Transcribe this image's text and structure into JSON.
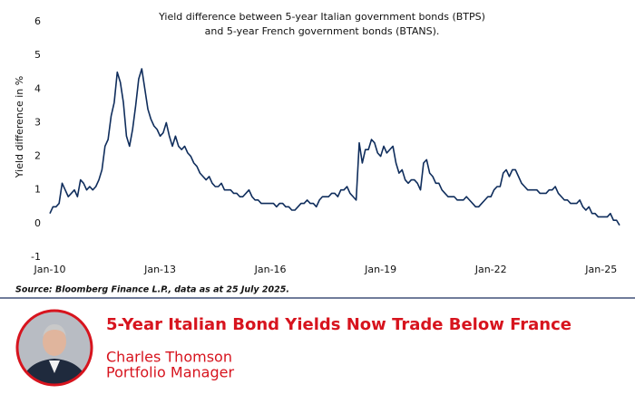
{
  "chart_data": {
    "type": "line",
    "title": [
      "Yield difference between 5-year Italian government bonds (BTPS)",
      "and 5-year French government bonds (BTANS)."
    ],
    "y_label": "Yield difference in %",
    "source": "Source: Bloomberg Finance L.P., data as at 25 July 2025.",
    "xlim": [
      "2010-01",
      "2025-07"
    ],
    "xticks": [
      {
        "value": "2010-01",
        "label": "Jan-10"
      },
      {
        "value": "2013-01",
        "label": "Jan-13"
      },
      {
        "value": "2016-01",
        "label": "Jan-16"
      },
      {
        "value": "2019-01",
        "label": "Jan-19"
      },
      {
        "value": "2022-01",
        "label": "Jan-22"
      },
      {
        "value": "2025-01",
        "label": "Jan-25"
      }
    ],
    "ylim": [
      -1,
      6
    ],
    "yticks": [
      -1,
      0,
      1,
      2,
      3,
      4,
      5,
      6
    ],
    "grid": false,
    "x": [
      "2010-01",
      "2010-02",
      "2010-03",
      "2010-04",
      "2010-05",
      "2010-06",
      "2010-07",
      "2010-08",
      "2010-09",
      "2010-10",
      "2010-11",
      "2010-12",
      "2011-01",
      "2011-02",
      "2011-03",
      "2011-04",
      "2011-05",
      "2011-06",
      "2011-07",
      "2011-08",
      "2011-09",
      "2011-10",
      "2011-11",
      "2011-12",
      "2012-01",
      "2012-02",
      "2012-03",
      "2012-04",
      "2012-05",
      "2012-06",
      "2012-07",
      "2012-08",
      "2012-09",
      "2012-10",
      "2012-11",
      "2012-12",
      "2013-01",
      "2013-02",
      "2013-03",
      "2013-04",
      "2013-05",
      "2013-06",
      "2013-07",
      "2013-08",
      "2013-09",
      "2013-10",
      "2013-11",
      "2013-12",
      "2014-01",
      "2014-02",
      "2014-03",
      "2014-04",
      "2014-05",
      "2014-06",
      "2014-07",
      "2014-08",
      "2014-09",
      "2014-10",
      "2014-11",
      "2014-12",
      "2015-01",
      "2015-02",
      "2015-03",
      "2015-04",
      "2015-05",
      "2015-06",
      "2015-07",
      "2015-08",
      "2015-09",
      "2015-10",
      "2015-11",
      "2015-12",
      "2016-01",
      "2016-02",
      "2016-03",
      "2016-04",
      "2016-05",
      "2016-06",
      "2016-07",
      "2016-08",
      "2016-09",
      "2016-10",
      "2016-11",
      "2016-12",
      "2017-01",
      "2017-02",
      "2017-03",
      "2017-04",
      "2017-05",
      "2017-06",
      "2017-07",
      "2017-08",
      "2017-09",
      "2017-10",
      "2017-11",
      "2017-12",
      "2018-01",
      "2018-02",
      "2018-03",
      "2018-04",
      "2018-05",
      "2018-06",
      "2018-07",
      "2018-08",
      "2018-09",
      "2018-10",
      "2018-11",
      "2018-12",
      "2019-01",
      "2019-02",
      "2019-03",
      "2019-04",
      "2019-05",
      "2019-06",
      "2019-07",
      "2019-08",
      "2019-09",
      "2019-10",
      "2019-11",
      "2019-12",
      "2020-01",
      "2020-02",
      "2020-03",
      "2020-04",
      "2020-05",
      "2020-06",
      "2020-07",
      "2020-08",
      "2020-09",
      "2020-10",
      "2020-11",
      "2020-12",
      "2021-01",
      "2021-02",
      "2021-03",
      "2021-04",
      "2021-05",
      "2021-06",
      "2021-07",
      "2021-08",
      "2021-09",
      "2021-10",
      "2021-11",
      "2021-12",
      "2022-01",
      "2022-02",
      "2022-03",
      "2022-04",
      "2022-05",
      "2022-06",
      "2022-07",
      "2022-08",
      "2022-09",
      "2022-10",
      "2022-11",
      "2022-12",
      "2023-01",
      "2023-02",
      "2023-03",
      "2023-04",
      "2023-05",
      "2023-06",
      "2023-07",
      "2023-08",
      "2023-09",
      "2023-10",
      "2023-11",
      "2023-12",
      "2024-01",
      "2024-02",
      "2024-03",
      "2024-04",
      "2024-05",
      "2024-06",
      "2024-07",
      "2024-08",
      "2024-09",
      "2024-10",
      "2024-11",
      "2024-12",
      "2025-01",
      "2025-02",
      "2025-03",
      "2025-04",
      "2025-05",
      "2025-06",
      "2025-07"
    ],
    "series": [
      {
        "color": "#0f2d5c",
        "values": [
          0.3,
          0.5,
          0.5,
          0.6,
          1.2,
          1.0,
          0.8,
          0.9,
          1.0,
          0.8,
          1.3,
          1.2,
          1.0,
          1.1,
          1.0,
          1.1,
          1.3,
          1.6,
          2.3,
          2.5,
          3.2,
          3.6,
          4.5,
          4.2,
          3.6,
          2.6,
          2.3,
          2.8,
          3.5,
          4.3,
          4.6,
          4.0,
          3.4,
          3.1,
          2.9,
          2.8,
          2.6,
          2.7,
          3.0,
          2.6,
          2.3,
          2.6,
          2.3,
          2.2,
          2.3,
          2.1,
          2.0,
          1.8,
          1.7,
          1.5,
          1.4,
          1.3,
          1.4,
          1.2,
          1.1,
          1.1,
          1.2,
          1.0,
          1.0,
          1.0,
          0.9,
          0.9,
          0.8,
          0.8,
          0.9,
          1.0,
          0.8,
          0.7,
          0.7,
          0.6,
          0.6,
          0.6,
          0.6,
          0.6,
          0.5,
          0.6,
          0.6,
          0.5,
          0.5,
          0.4,
          0.4,
          0.5,
          0.6,
          0.6,
          0.7,
          0.6,
          0.6,
          0.5,
          0.7,
          0.8,
          0.8,
          0.8,
          0.9,
          0.9,
          0.8,
          1.0,
          1.0,
          1.1,
          0.9,
          0.8,
          0.7,
          2.4,
          1.8,
          2.2,
          2.2,
          2.5,
          2.4,
          2.1,
          2.0,
          2.3,
          2.1,
          2.2,
          2.3,
          1.8,
          1.5,
          1.6,
          1.3,
          1.2,
          1.3,
          1.3,
          1.2,
          1.0,
          1.8,
          1.9,
          1.5,
          1.4,
          1.2,
          1.2,
          1.0,
          0.9,
          0.8,
          0.8,
          0.8,
          0.7,
          0.7,
          0.7,
          0.8,
          0.7,
          0.6,
          0.5,
          0.5,
          0.6,
          0.7,
          0.8,
          0.8,
          1.0,
          1.1,
          1.1,
          1.5,
          1.6,
          1.4,
          1.6,
          1.6,
          1.4,
          1.2,
          1.1,
          1.0,
          1.0,
          1.0,
          1.0,
          0.9,
          0.9,
          0.9,
          1.0,
          1.0,
          1.1,
          0.9,
          0.8,
          0.7,
          0.7,
          0.6,
          0.6,
          0.6,
          0.7,
          0.5,
          0.4,
          0.5,
          0.3,
          0.3,
          0.2,
          0.2,
          0.2,
          0.2,
          0.3,
          0.1,
          0.1,
          -0.05
        ]
      }
    ]
  },
  "footer": {
    "headline": "5-Year Italian Bond Yields Now Trade Below France",
    "name": "Charles Thomson",
    "role": "Portfolio Manager"
  }
}
